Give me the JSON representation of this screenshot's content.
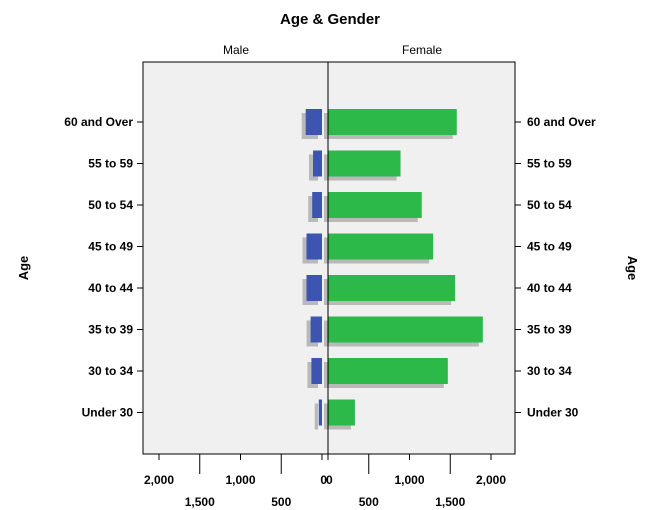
{
  "chart_data": {
    "type": "bar",
    "orientation": "horizontal",
    "layout": "population-pyramid",
    "title": "Age & Gender",
    "ylabel": "Age",
    "categories": [
      "60 and Over",
      "55 to 59",
      "50 to 54",
      "45 to 49",
      "40 to 44",
      "35 to 39",
      "30 to 34",
      "Under 30"
    ],
    "series": [
      {
        "name": "Male",
        "color": "#3d55b0",
        "values": [
          200,
          110,
          120,
          190,
          190,
          140,
          130,
          40
        ]
      },
      {
        "name": "Female",
        "color": "#2db84a",
        "values": [
          1580,
          890,
          1150,
          1290,
          1560,
          1900,
          1470,
          330
        ]
      }
    ],
    "shadow_color": "#b9b9b9",
    "plot_background": "#f0f0f0",
    "grid": false,
    "male_axis": {
      "xlim": [
        0,
        2300
      ],
      "ticks_row1": [
        2000,
        1000,
        0
      ],
      "ticks_row1_labels": [
        "2,000",
        "1,000",
        "0"
      ],
      "ticks_row2": [
        1500,
        500
      ],
      "ticks_row2_labels": [
        "1,500",
        "500"
      ]
    },
    "female_axis": {
      "xlim": [
        0,
        2300
      ],
      "ticks_row1": [
        0,
        1000,
        2000
      ],
      "ticks_row1_labels": [
        "0",
        "1,000",
        "2,000"
      ],
      "ticks_row2": [
        500,
        1500
      ],
      "ticks_row2_labels": [
        "500",
        "1,500"
      ]
    }
  }
}
